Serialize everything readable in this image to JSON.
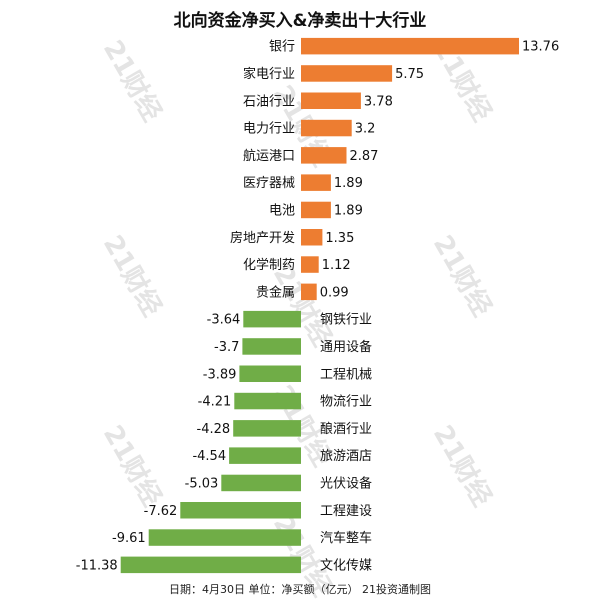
{
  "title": "北向资金净买入&净卖出十大行业",
  "footnote": "日期：4月30日 单位：净买额（亿元） 21投资通制图",
  "watermark": "21财经",
  "colors": {
    "positive": "#ED7D31",
    "negative": "#70AD47"
  },
  "chart_data": {
    "type": "bar",
    "orientation": "horizontal",
    "title": "北向资金净买入&净卖出十大行业",
    "categories": [
      "银行",
      "家电行业",
      "石油行业",
      "电力行业",
      "航运港口",
      "医疗器械",
      "电池",
      "房地产开发",
      "化学制药",
      "贵金属",
      "钢铁行业",
      "通用设备",
      "工程机械",
      "物流行业",
      "酿酒行业",
      "旅游酒店",
      "光伏设备",
      "工程建设",
      "汽车整车",
      "文化传媒"
    ],
    "values": [
      13.76,
      5.75,
      3.78,
      3.2,
      2.87,
      1.89,
      1.89,
      1.35,
      1.12,
      0.99,
      -3.64,
      -3.7,
      -3.89,
      -4.21,
      -4.28,
      -4.54,
      -5.03,
      -7.62,
      -9.61,
      -11.38
    ],
    "value_labels": [
      "13.76",
      "5.75",
      "3.78",
      "3.2",
      "2.87",
      "1.89",
      "1.89",
      "1.35",
      "1.12",
      "0.99",
      "-3.64",
      "-3.7",
      "-3.89",
      "-4.21",
      "-4.28",
      "-4.54",
      "-5.03",
      "-7.62",
      "-9.61",
      "-11.38"
    ],
    "xlabel": "",
    "ylabel": "",
    "grid": false,
    "legend": "none"
  }
}
